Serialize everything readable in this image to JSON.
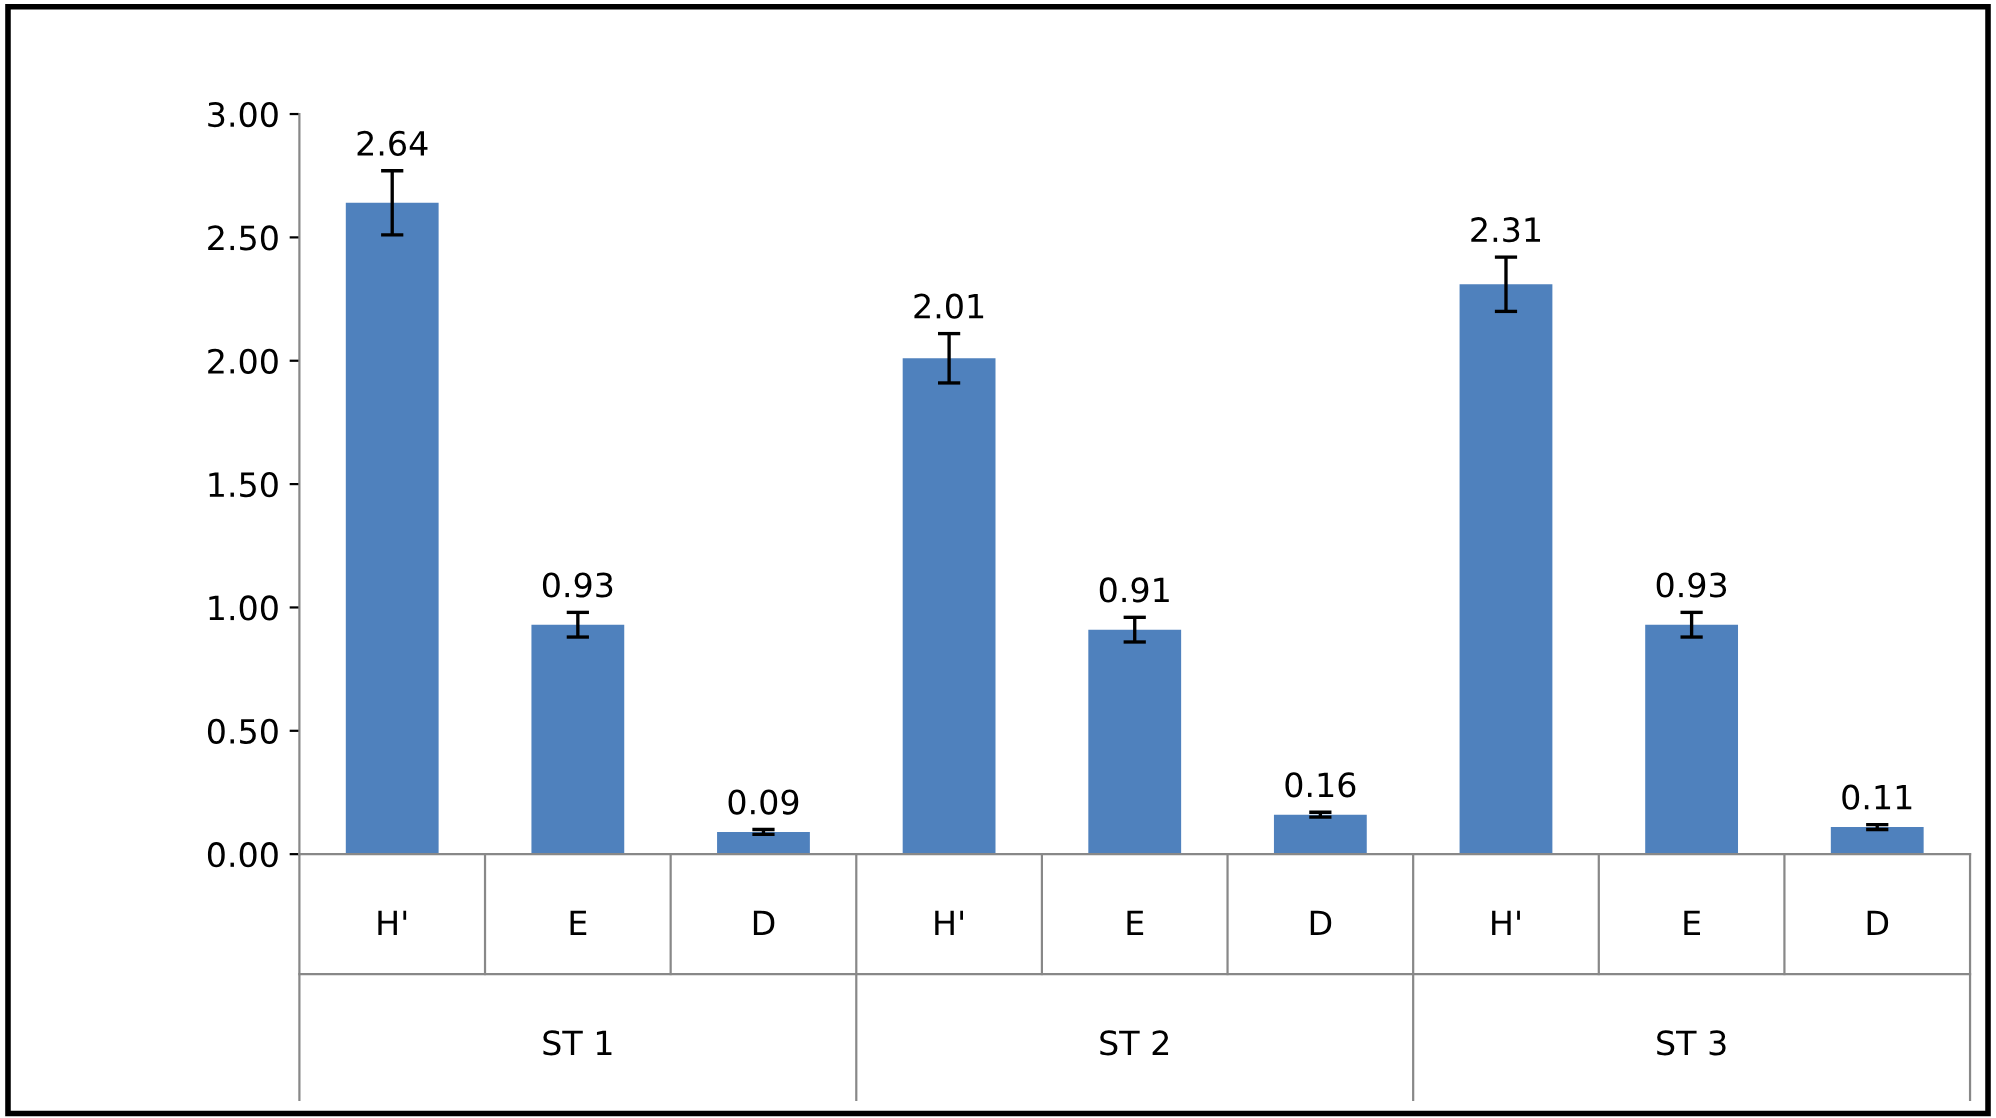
{
  "chart_data": {
    "type": "bar",
    "categories": [
      "H'",
      "E",
      "D",
      "H'",
      "E",
      "D",
      "H'",
      "E",
      "D"
    ],
    "values": [
      2.64,
      0.93,
      0.09,
      2.01,
      0.91,
      0.16,
      2.31,
      0.93,
      0.11
    ],
    "errors": [
      0.13,
      0.05,
      0.01,
      0.1,
      0.05,
      0.01,
      0.11,
      0.05,
      0.01
    ],
    "color": "#4f81bd",
    "ylim": [
      0,
      3
    ],
    "yticks": [
      {
        "value": 0,
        "label": "0.00"
      },
      {
        "value": 0.5,
        "label": "0.50"
      },
      {
        "value": 1,
        "label": "1.00"
      },
      {
        "value": 1.5,
        "label": "1.50"
      },
      {
        "value": 2,
        "label": "2.00"
      },
      {
        "value": 2.5,
        "label": "2.50"
      },
      {
        "value": 3,
        "label": "3.00"
      }
    ],
    "data_labels": true,
    "annotations": [
      "ST 1",
      "ST 2",
      "ST 3"
    ],
    "grid": false,
    "legend": false
  }
}
